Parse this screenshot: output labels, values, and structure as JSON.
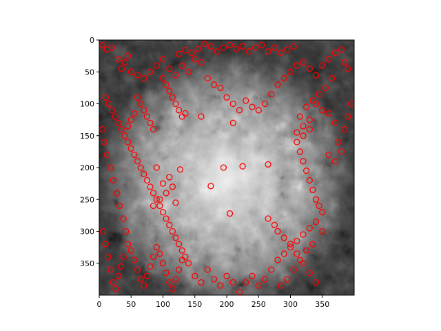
{
  "chart_data": {
    "type": "scatter",
    "title": "",
    "xlabel": "",
    "ylabel": "",
    "xlim": [
      0,
      400
    ],
    "ylim": [
      400,
      0
    ],
    "y_inverted": true,
    "x_ticks": [
      0,
      50,
      100,
      150,
      200,
      250,
      300,
      350
    ],
    "y_ticks": [
      0,
      50,
      100,
      150,
      200,
      250,
      300,
      350
    ],
    "background": "grayscale-image",
    "grid": false,
    "legend": "none",
    "marker": "open-circle",
    "marker_color": "#ff0000",
    "series": [
      {
        "points": [
          [
            5,
            8
          ],
          [
            12,
            15
          ],
          [
            20,
            12
          ],
          [
            30,
            30
          ],
          [
            40,
            35
          ],
          [
            45,
            25
          ],
          [
            35,
            45
          ],
          [
            50,
            50
          ],
          [
            60,
            55
          ],
          [
            70,
            60
          ],
          [
            80,
            50
          ],
          [
            90,
            40
          ],
          [
            100,
            30
          ],
          [
            110,
            45
          ],
          [
            120,
            55
          ],
          [
            130,
            40
          ],
          [
            140,
            50
          ],
          [
            150,
            30
          ],
          [
            160,
            35
          ],
          [
            170,
            60
          ],
          [
            180,
            70
          ],
          [
            190,
            75
          ],
          [
            200,
            90
          ],
          [
            210,
            100
          ],
          [
            220,
            110
          ],
          [
            230,
            95
          ],
          [
            240,
            105
          ],
          [
            250,
            110
          ],
          [
            260,
            100
          ],
          [
            270,
            85
          ],
          [
            280,
            70
          ],
          [
            290,
            60
          ],
          [
            300,
            50
          ],
          [
            310,
            40
          ],
          [
            320,
            35
          ],
          [
            330,
            45
          ],
          [
            340,
            55
          ],
          [
            350,
            40
          ],
          [
            360,
            30
          ],
          [
            370,
            20
          ],
          [
            380,
            15
          ],
          [
            385,
            35
          ],
          [
            390,
            45
          ],
          [
            365,
            60
          ],
          [
            355,
            75
          ],
          [
            345,
            85
          ],
          [
            335,
            95
          ],
          [
            325,
            105
          ],
          [
            315,
            120
          ],
          [
            305,
            10
          ],
          [
            295,
            15
          ],
          [
            285,
            20
          ],
          [
            275,
            12
          ],
          [
            265,
            18
          ],
          [
            255,
            8
          ],
          [
            245,
            12
          ],
          [
            235,
            18
          ],
          [
            225,
            10
          ],
          [
            215,
            14
          ],
          [
            205,
            8
          ],
          [
            195,
            12
          ],
          [
            185,
            18
          ],
          [
            175,
            10
          ],
          [
            165,
            6
          ],
          [
            155,
            14
          ],
          [
            145,
            20
          ],
          [
            135,
            16
          ],
          [
            125,
            22
          ],
          [
            10,
            90
          ],
          [
            15,
            100
          ],
          [
            20,
            110
          ],
          [
            25,
            120
          ],
          [
            30,
            130
          ],
          [
            35,
            140
          ],
          [
            40,
            150
          ],
          [
            45,
            160
          ],
          [
            50,
            170
          ],
          [
            55,
            180
          ],
          [
            60,
            190
          ],
          [
            65,
            200
          ],
          [
            70,
            210
          ],
          [
            75,
            220
          ],
          [
            80,
            230
          ],
          [
            85,
            240
          ],
          [
            90,
            250
          ],
          [
            95,
            260
          ],
          [
            100,
            270
          ],
          [
            105,
            280
          ],
          [
            110,
            290
          ],
          [
            115,
            300
          ],
          [
            120,
            310
          ],
          [
            125,
            320
          ],
          [
            130,
            330
          ],
          [
            135,
            340
          ],
          [
            140,
            350
          ],
          [
            5,
            140
          ],
          [
            8,
            160
          ],
          [
            12,
            180
          ],
          [
            18,
            200
          ],
          [
            22,
            220
          ],
          [
            28,
            240
          ],
          [
            32,
            260
          ],
          [
            38,
            280
          ],
          [
            42,
            300
          ],
          [
            6,
            300
          ],
          [
            10,
            320
          ],
          [
            14,
            340
          ],
          [
            18,
            360
          ],
          [
            22,
            380
          ],
          [
            26,
            390
          ],
          [
            30,
            370
          ],
          [
            34,
            355
          ],
          [
            38,
            340
          ],
          [
            45,
            320
          ],
          [
            50,
            330
          ],
          [
            55,
            345
          ],
          [
            60,
            360
          ],
          [
            65,
            375
          ],
          [
            70,
            385
          ],
          [
            75,
            370
          ],
          [
            80,
            355
          ],
          [
            85,
            340
          ],
          [
            90,
            325
          ],
          [
            95,
            335
          ],
          [
            100,
            350
          ],
          [
            105,
            365
          ],
          [
            110,
            380
          ],
          [
            115,
            390
          ],
          [
            120,
            375
          ],
          [
            125,
            360
          ],
          [
            130,
            345
          ],
          [
            150,
            370
          ],
          [
            160,
            380
          ],
          [
            170,
            360
          ],
          [
            180,
            375
          ],
          [
            190,
            385
          ],
          [
            200,
            370
          ],
          [
            210,
            380
          ],
          [
            220,
            395
          ],
          [
            230,
            380
          ],
          [
            240,
            370
          ],
          [
            250,
            385
          ],
          [
            260,
            375
          ],
          [
            270,
            360
          ],
          [
            280,
            345
          ],
          [
            290,
            335
          ],
          [
            300,
            325
          ],
          [
            310,
            315
          ],
          [
            320,
            305
          ],
          [
            330,
            295
          ],
          [
            340,
            285
          ],
          [
            350,
            300
          ],
          [
            335,
            320
          ],
          [
            325,
            330
          ],
          [
            315,
            345
          ],
          [
            305,
            360
          ],
          [
            295,
            375
          ],
          [
            285,
            385
          ],
          [
            275,
            290
          ],
          [
            265,
            280
          ],
          [
            280,
            300
          ],
          [
            290,
            310
          ],
          [
            300,
            320
          ],
          [
            310,
            335
          ],
          [
            320,
            350
          ],
          [
            330,
            365
          ],
          [
            340,
            380
          ],
          [
            330,
            140
          ],
          [
            320,
            150
          ],
          [
            310,
            160
          ],
          [
            315,
            175
          ],
          [
            320,
            190
          ],
          [
            325,
            205
          ],
          [
            330,
            220
          ],
          [
            335,
            235
          ],
          [
            340,
            250
          ],
          [
            345,
            260
          ],
          [
            350,
            270
          ],
          [
            360,
            180
          ],
          [
            370,
            190
          ],
          [
            380,
            175
          ],
          [
            375,
            160
          ],
          [
            385,
            140
          ],
          [
            390,
            120
          ],
          [
            395,
            100
          ],
          [
            370,
            130
          ],
          [
            360,
            115
          ],
          [
            350,
            110
          ],
          [
            340,
            100
          ],
          [
            330,
            125
          ],
          [
            320,
            135
          ],
          [
            310,
            145
          ],
          [
            195,
            200
          ],
          [
            175,
            229
          ],
          [
            205,
            272
          ],
          [
            127,
            203
          ],
          [
            265,
            195
          ],
          [
            225,
            198
          ],
          [
            210,
            130
          ],
          [
            160,
            120
          ],
          [
            115,
            230
          ],
          [
            105,
            240
          ],
          [
            95,
            250
          ],
          [
            85,
            260
          ],
          [
            120,
            255
          ],
          [
            110,
            215
          ],
          [
            90,
            200
          ],
          [
            100,
            225
          ],
          [
            60,
            90
          ],
          [
            65,
            100
          ],
          [
            70,
            110
          ],
          [
            75,
            120
          ],
          [
            80,
            130
          ],
          [
            85,
            140
          ],
          [
            55,
            115
          ],
          [
            50,
            125
          ],
          [
            45,
            135
          ],
          [
            100,
            60
          ],
          [
            105,
            70
          ],
          [
            110,
            80
          ],
          [
            115,
            90
          ],
          [
            120,
            100
          ],
          [
            125,
            110
          ],
          [
            130,
            120
          ],
          [
            135,
            115
          ]
        ]
      }
    ]
  }
}
